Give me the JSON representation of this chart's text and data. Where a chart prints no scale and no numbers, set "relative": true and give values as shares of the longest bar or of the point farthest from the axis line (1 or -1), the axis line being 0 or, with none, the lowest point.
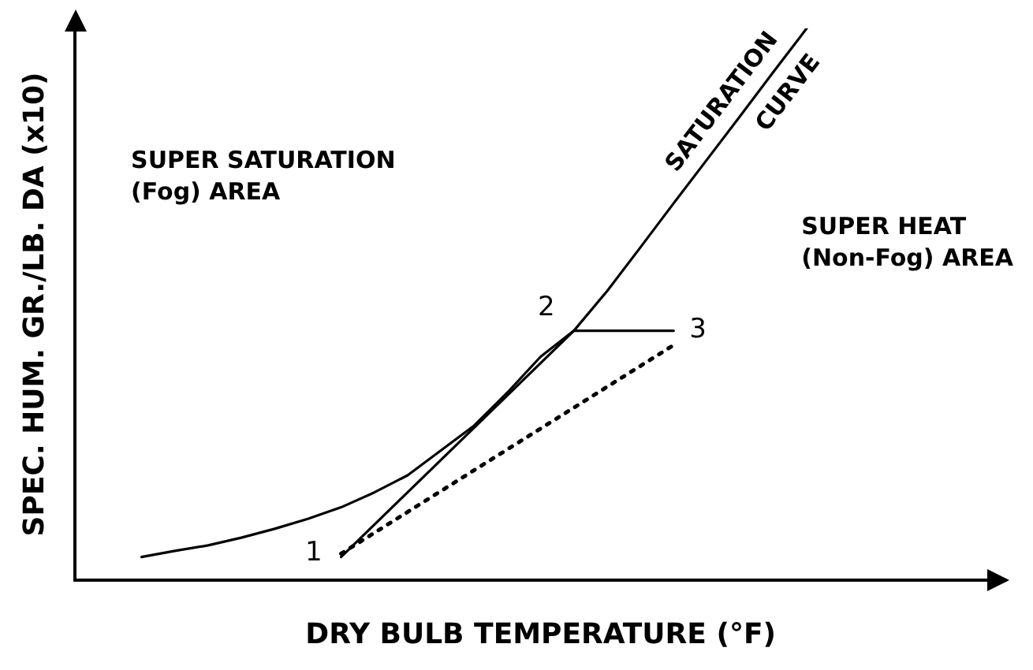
{
  "chart_data": {
    "type": "line",
    "relative": true,
    "xlabel": "DRY BULB TEMPERATURE (°F)",
    "ylabel": "SPEC. HUM. GR./LB. DA (x10)",
    "grid": false,
    "legend": false,
    "marker": "none",
    "categories": [
      null,
      null,
      null,
      null,
      null,
      null,
      null,
      null,
      null,
      null,
      null,
      null,
      null,
      null,
      null,
      null,
      null,
      null,
      null,
      null,
      null,
      null,
      null,
      null,
      null,
      null,
      null,
      null,
      null
    ],
    "series": [
      {
        "name": "SATURATION CURVE",
        "color": "#000000",
        "line_style": "solid",
        "values": [
          null,
          null,
          0.042,
          0.053,
          0.063,
          0.077,
          0.093,
          0.111,
          0.132,
          0.159,
          0.19,
          0.235,
          0.28,
          0.34,
          0.405,
          0.452,
          0.524,
          0.603,
          0.683,
          0.762,
          0.841,
          0.921,
          1,
          null,
          null,
          null,
          null,
          null,
          null
        ]
      },
      {
        "color": "#000000",
        "line_style": "solid",
        "values": [
          null,
          null,
          null,
          null,
          null,
          null,
          null,
          null,
          0.042,
          null,
          null,
          null,
          null,
          null,
          null,
          0.452,
          null,
          null,
          null,
          null,
          null,
          null,
          null,
          null,
          null,
          null,
          null,
          null,
          null
        ]
      },
      {
        "color": "#000000",
        "line_style": "solid",
        "values": [
          null,
          null,
          null,
          null,
          null,
          null,
          null,
          null,
          null,
          null,
          null,
          null,
          null,
          null,
          null,
          0.452,
          null,
          null,
          0.452,
          null,
          null,
          null,
          null,
          null,
          null,
          null,
          null,
          null,
          null
        ]
      },
      {
        "color": "#000000",
        "line_style": "dotted",
        "values": [
          null,
          null,
          null,
          null,
          null,
          null,
          null,
          null,
          0.048,
          null,
          null,
          null,
          null,
          null,
          null,
          null,
          null,
          null,
          0.426,
          null,
          null,
          null,
          null,
          null,
          null,
          null,
          null,
          null,
          null
        ]
      }
    ],
    "annotations": [
      "SUPER SATURATION\n(Fog) AREA",
      "SUPER HEAT\n(Non-Fog) AREA",
      "1",
      "2",
      "3"
    ]
  }
}
